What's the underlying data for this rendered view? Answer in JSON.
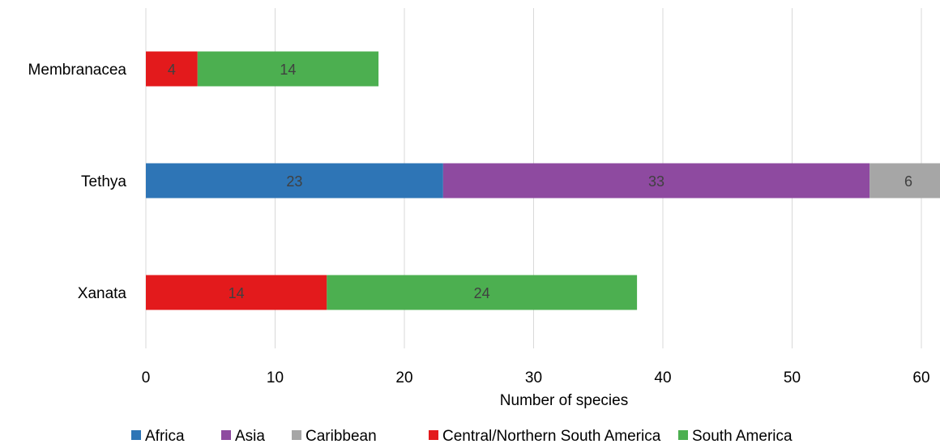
{
  "chart_data": {
    "type": "bar",
    "orientation": "horizontal",
    "stacked": true,
    "categories": [
      "Membranacea",
      "Tethya",
      "Xanata"
    ],
    "series": [
      {
        "name": "Africa",
        "color": "#2e75b6",
        "values": [
          0,
          23,
          0
        ]
      },
      {
        "name": "Asia",
        "color": "#8e4aa0",
        "values": [
          0,
          33,
          0
        ]
      },
      {
        "name": "Caribbean",
        "color": "#a6a6a6",
        "values": [
          0,
          6,
          0
        ]
      },
      {
        "name": "Central/Northern South America",
        "color": "#e31a1c",
        "values": [
          4,
          0,
          14
        ]
      },
      {
        "name": "South America",
        "color": "#4caf50",
        "values": [
          14,
          0,
          24
        ]
      }
    ],
    "xlabel": "Number of species",
    "ylabel": "",
    "xlim": [
      0,
      60
    ],
    "xticks": [
      0,
      10,
      20,
      30,
      40,
      50,
      60
    ],
    "grid": true,
    "legend_position": "bottom"
  }
}
